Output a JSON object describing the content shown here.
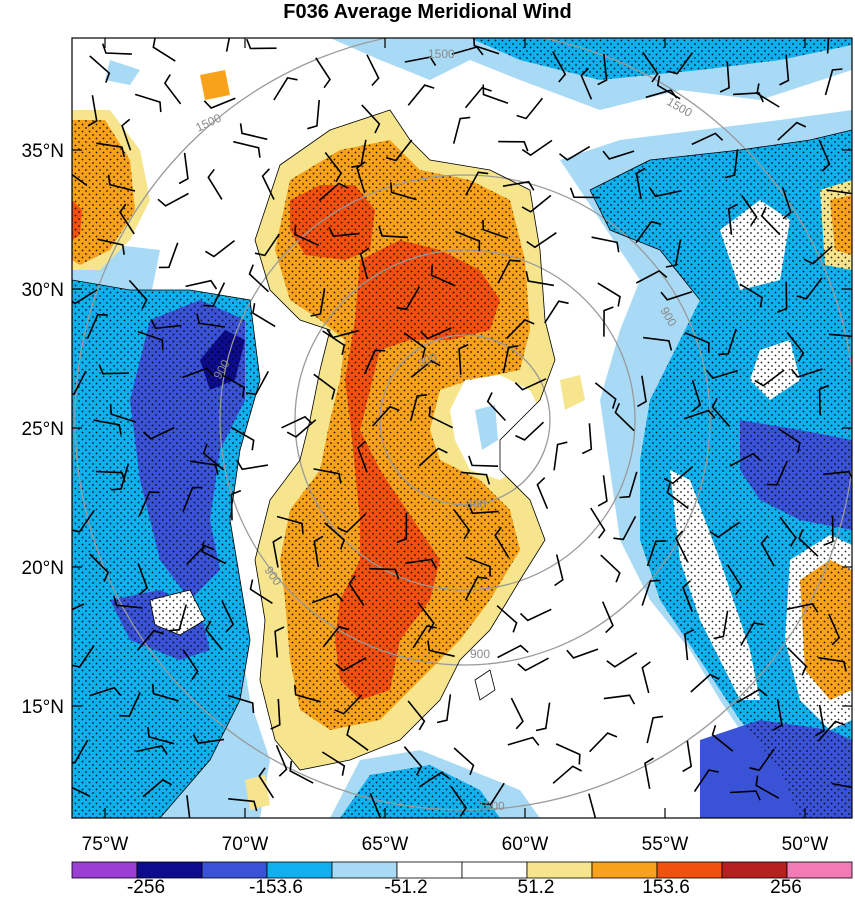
{
  "title": "F036 Average Meridional Wind",
  "map": {
    "lat_labels": [
      "35°N",
      "30°N",
      "25°N",
      "20°N",
      "15°N"
    ],
    "lon_labels": [
      "75°W",
      "70°W",
      "65°W",
      "60°W",
      "55°W",
      "50°W"
    ],
    "contour_labels": [
      "1500",
      "1500",
      "1500",
      "1500",
      "900",
      "900",
      "900",
      "900",
      "300",
      "300"
    ]
  },
  "colorbar": {
    "labels": [
      "-256",
      "-153.6",
      "-51.2",
      "51.2",
      "153.6",
      "256"
    ],
    "colors": [
      "#9b3fd4",
      "#0c0c8c",
      "#3a52d6",
      "#0fb0ee",
      "#a8daf5",
      "#ffffff",
      "#ffffff",
      "#f6e58d",
      "#f8a21c",
      "#f2500e",
      "#b62020",
      "#f27bb5"
    ]
  },
  "palette": {
    "dark_blue": "#0c0c8c",
    "blue": "#3a52d6",
    "cyan": "#0fb0ee",
    "light_blue": "#a8daf5",
    "yellow": "#f6e58d",
    "orange": "#f8a21c",
    "red_orange": "#f2500e",
    "contour_gray": "#9a9a9a"
  }
}
